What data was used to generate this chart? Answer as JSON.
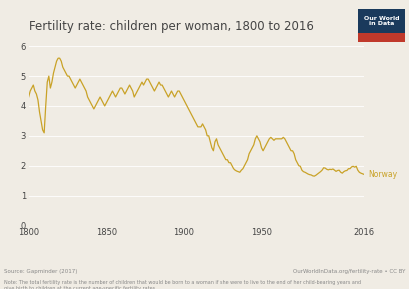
{
  "title": "Fertility rate: children per woman, 1800 to 2016",
  "line_color": "#c9a227",
  "background_color": "#f0ece4",
  "plot_bg_color": "#f0ece4",
  "grid_color": "#ffffff",
  "text_color": "#444444",
  "title_color": "#444444",
  "ylim": [
    0,
    6
  ],
  "xlim": [
    1800,
    2016
  ],
  "yticks": [
    0,
    1,
    2,
    3,
    4,
    5,
    6
  ],
  "xticks": [
    1800,
    1850,
    1900,
    1950,
    2016
  ],
  "label_norway": "Norway",
  "source_text": "Source: Gapminder (2017)",
  "url_text": "OurWorldInData.org/fertility-rate • CC BY",
  "note_text": "Note: The total fertility rate is the number of children that would be born to a woman if she were to live to the end of her child-bearing years and\ngive birth to children at the current age-specific fertility rates.",
  "owid_box_color": "#1a3a5c",
  "owid_red_color": "#c0392b",
  "owid_text": "Our World\nin Data",
  "norway_data": [
    [
      1800,
      4.3
    ],
    [
      1801,
      4.5
    ],
    [
      1802,
      4.6
    ],
    [
      1803,
      4.7
    ],
    [
      1804,
      4.5
    ],
    [
      1805,
      4.4
    ],
    [
      1806,
      4.2
    ],
    [
      1807,
      3.8
    ],
    [
      1808,
      3.5
    ],
    [
      1809,
      3.2
    ],
    [
      1810,
      3.1
    ],
    [
      1811,
      4.0
    ],
    [
      1812,
      4.8
    ],
    [
      1813,
      5.0
    ],
    [
      1814,
      4.6
    ],
    [
      1815,
      4.8
    ],
    [
      1816,
      5.1
    ],
    [
      1817,
      5.3
    ],
    [
      1818,
      5.5
    ],
    [
      1819,
      5.6
    ],
    [
      1820,
      5.6
    ],
    [
      1821,
      5.5
    ],
    [
      1822,
      5.3
    ],
    [
      1823,
      5.2
    ],
    [
      1824,
      5.1
    ],
    [
      1825,
      5.0
    ],
    [
      1826,
      5.0
    ],
    [
      1827,
      4.9
    ],
    [
      1828,
      4.8
    ],
    [
      1829,
      4.7
    ],
    [
      1830,
      4.6
    ],
    [
      1831,
      4.7
    ],
    [
      1832,
      4.8
    ],
    [
      1833,
      4.9
    ],
    [
      1834,
      4.8
    ],
    [
      1835,
      4.7
    ],
    [
      1836,
      4.6
    ],
    [
      1837,
      4.5
    ],
    [
      1838,
      4.3
    ],
    [
      1839,
      4.2
    ],
    [
      1840,
      4.1
    ],
    [
      1841,
      4.0
    ],
    [
      1842,
      3.9
    ],
    [
      1843,
      4.0
    ],
    [
      1844,
      4.1
    ],
    [
      1845,
      4.2
    ],
    [
      1846,
      4.3
    ],
    [
      1847,
      4.2
    ],
    [
      1848,
      4.1
    ],
    [
      1849,
      4.0
    ],
    [
      1850,
      4.1
    ],
    [
      1851,
      4.2
    ],
    [
      1852,
      4.3
    ],
    [
      1853,
      4.4
    ],
    [
      1854,
      4.5
    ],
    [
      1855,
      4.4
    ],
    [
      1856,
      4.3
    ],
    [
      1857,
      4.4
    ],
    [
      1858,
      4.5
    ],
    [
      1859,
      4.6
    ],
    [
      1860,
      4.6
    ],
    [
      1861,
      4.5
    ],
    [
      1862,
      4.4
    ],
    [
      1863,
      4.5
    ],
    [
      1864,
      4.6
    ],
    [
      1865,
      4.7
    ],
    [
      1866,
      4.6
    ],
    [
      1867,
      4.5
    ],
    [
      1868,
      4.3
    ],
    [
      1869,
      4.4
    ],
    [
      1870,
      4.5
    ],
    [
      1871,
      4.6
    ],
    [
      1872,
      4.7
    ],
    [
      1873,
      4.8
    ],
    [
      1874,
      4.7
    ],
    [
      1875,
      4.8
    ],
    [
      1876,
      4.9
    ],
    [
      1877,
      4.9
    ],
    [
      1878,
      4.8
    ],
    [
      1879,
      4.7
    ],
    [
      1880,
      4.6
    ],
    [
      1881,
      4.5
    ],
    [
      1882,
      4.6
    ],
    [
      1883,
      4.7
    ],
    [
      1884,
      4.8
    ],
    [
      1885,
      4.7
    ],
    [
      1886,
      4.7
    ],
    [
      1887,
      4.6
    ],
    [
      1888,
      4.5
    ],
    [
      1889,
      4.4
    ],
    [
      1890,
      4.3
    ],
    [
      1891,
      4.4
    ],
    [
      1892,
      4.5
    ],
    [
      1893,
      4.4
    ],
    [
      1894,
      4.3
    ],
    [
      1895,
      4.4
    ],
    [
      1896,
      4.5
    ],
    [
      1897,
      4.5
    ],
    [
      1898,
      4.4
    ],
    [
      1899,
      4.3
    ],
    [
      1900,
      4.2
    ],
    [
      1901,
      4.1
    ],
    [
      1902,
      4.0
    ],
    [
      1903,
      3.9
    ],
    [
      1904,
      3.8
    ],
    [
      1905,
      3.7
    ],
    [
      1906,
      3.6
    ],
    [
      1907,
      3.5
    ],
    [
      1908,
      3.4
    ],
    [
      1909,
      3.3
    ],
    [
      1910,
      3.3
    ],
    [
      1911,
      3.3
    ],
    [
      1912,
      3.4
    ],
    [
      1913,
      3.3
    ],
    [
      1914,
      3.2
    ],
    [
      1915,
      3.0
    ],
    [
      1916,
      3.0
    ],
    [
      1917,
      2.8
    ],
    [
      1918,
      2.6
    ],
    [
      1919,
      2.5
    ],
    [
      1920,
      2.8
    ],
    [
      1921,
      2.9
    ],
    [
      1922,
      2.7
    ],
    [
      1923,
      2.6
    ],
    [
      1924,
      2.5
    ],
    [
      1925,
      2.4
    ],
    [
      1926,
      2.3
    ],
    [
      1927,
      2.2
    ],
    [
      1928,
      2.2
    ],
    [
      1929,
      2.1
    ],
    [
      1930,
      2.1
    ],
    [
      1931,
      2.0
    ],
    [
      1932,
      1.9
    ],
    [
      1933,
      1.85
    ],
    [
      1934,
      1.82
    ],
    [
      1935,
      1.8
    ],
    [
      1936,
      1.78
    ],
    [
      1937,
      1.85
    ],
    [
      1938,
      1.9
    ],
    [
      1939,
      2.0
    ],
    [
      1940,
      2.1
    ],
    [
      1941,
      2.2
    ],
    [
      1942,
      2.4
    ],
    [
      1943,
      2.5
    ],
    [
      1944,
      2.6
    ],
    [
      1945,
      2.7
    ],
    [
      1946,
      2.9
    ],
    [
      1947,
      3.0
    ],
    [
      1948,
      2.9
    ],
    [
      1949,
      2.8
    ],
    [
      1950,
      2.6
    ],
    [
      1951,
      2.5
    ],
    [
      1952,
      2.6
    ],
    [
      1953,
      2.7
    ],
    [
      1954,
      2.8
    ],
    [
      1955,
      2.9
    ],
    [
      1956,
      2.95
    ],
    [
      1957,
      2.9
    ],
    [
      1958,
      2.85
    ],
    [
      1959,
      2.9
    ],
    [
      1960,
      2.9
    ],
    [
      1961,
      2.9
    ],
    [
      1962,
      2.9
    ],
    [
      1963,
      2.9
    ],
    [
      1964,
      2.95
    ],
    [
      1965,
      2.9
    ],
    [
      1966,
      2.8
    ],
    [
      1967,
      2.7
    ],
    [
      1968,
      2.6
    ],
    [
      1969,
      2.5
    ],
    [
      1970,
      2.5
    ],
    [
      1971,
      2.4
    ],
    [
      1972,
      2.2
    ],
    [
      1973,
      2.1
    ],
    [
      1974,
      2.0
    ],
    [
      1975,
      1.98
    ],
    [
      1976,
      1.85
    ],
    [
      1977,
      1.8
    ],
    [
      1978,
      1.78
    ],
    [
      1979,
      1.75
    ],
    [
      1980,
      1.72
    ],
    [
      1981,
      1.7
    ],
    [
      1982,
      1.69
    ],
    [
      1983,
      1.66
    ],
    [
      1984,
      1.65
    ],
    [
      1985,
      1.68
    ],
    [
      1986,
      1.72
    ],
    [
      1987,
      1.76
    ],
    [
      1988,
      1.8
    ],
    [
      1989,
      1.85
    ],
    [
      1990,
      1.93
    ],
    [
      1991,
      1.92
    ],
    [
      1992,
      1.88
    ],
    [
      1993,
      1.86
    ],
    [
      1994,
      1.88
    ],
    [
      1995,
      1.87
    ],
    [
      1996,
      1.89
    ],
    [
      1997,
      1.85
    ],
    [
      1998,
      1.81
    ],
    [
      1999,
      1.84
    ],
    [
      2000,
      1.85
    ],
    [
      2001,
      1.78
    ],
    [
      2002,
      1.75
    ],
    [
      2003,
      1.8
    ],
    [
      2004,
      1.83
    ],
    [
      2005,
      1.84
    ],
    [
      2006,
      1.9
    ],
    [
      2007,
      1.9
    ],
    [
      2008,
      1.96
    ],
    [
      2009,
      1.98
    ],
    [
      2010,
      1.95
    ],
    [
      2011,
      1.98
    ],
    [
      2012,
      1.85
    ],
    [
      2013,
      1.78
    ],
    [
      2014,
      1.75
    ],
    [
      2015,
      1.73
    ],
    [
      2016,
      1.71
    ]
  ]
}
